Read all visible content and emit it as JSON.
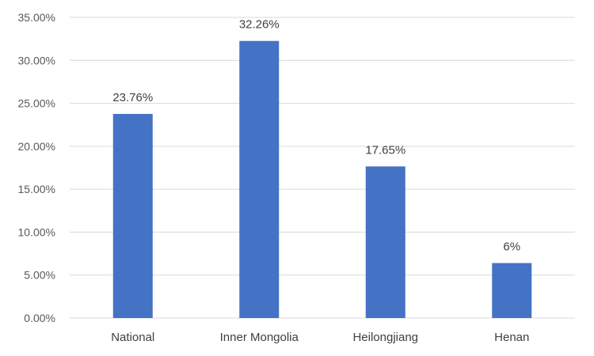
{
  "chart_data": {
    "type": "bar",
    "categories": [
      "National",
      "Inner Mongolia",
      "Heilongjiang",
      "Henan"
    ],
    "values": [
      23.76,
      32.26,
      17.65,
      6.4
    ],
    "data_labels": [
      "23.76%",
      "32.26%",
      "17.65%",
      "6%"
    ],
    "y_ticks": [
      "0.00%",
      "5.00%",
      "10.00%",
      "15.00%",
      "20.00%",
      "25.00%",
      "30.00%",
      "35.00%"
    ],
    "ylim": [
      0,
      35
    ],
    "title": "",
    "xlabel": "",
    "ylabel": "",
    "grid": true,
    "legend": "none",
    "bar_color": "#4472c4"
  }
}
